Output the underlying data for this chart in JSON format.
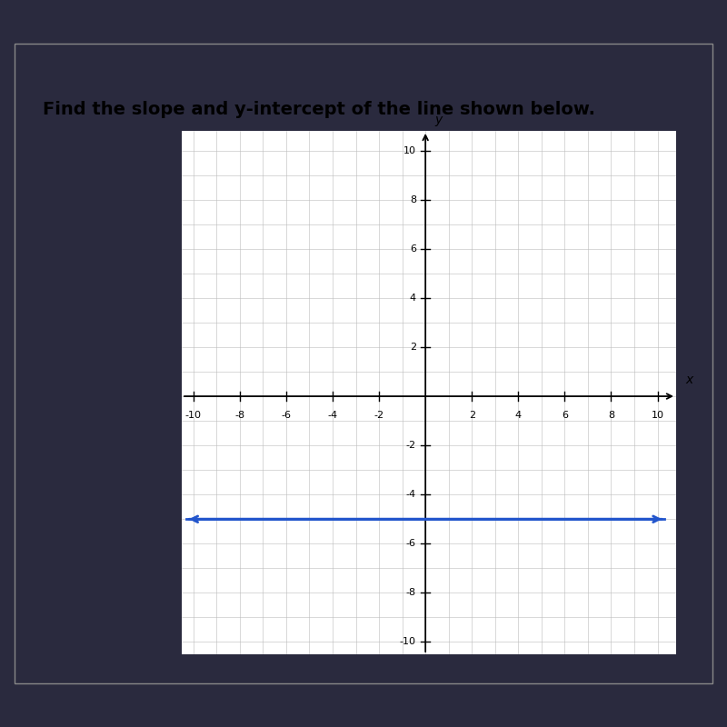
{
  "title": "Find the slope and y-intercept of the line shown below.",
  "title_fontsize": 14,
  "title_color": "#000000",
  "bg_outer_top": "#1a1a2e",
  "bg_card": "#e8e8e8",
  "bg_white": "#ffffff",
  "grid_color": "#bbbbbb",
  "axis_color": "#000000",
  "line_y": -5,
  "line_color": "#2255cc",
  "line_width": 2.0,
  "xlim": [
    -10.5,
    11
  ],
  "ylim": [
    -10.5,
    11
  ],
  "xticks": [
    -10,
    -8,
    -6,
    -4,
    -2,
    2,
    4,
    6,
    8,
    10
  ],
  "yticks": [
    -10,
    -8,
    -6,
    -4,
    -2,
    2,
    4,
    6,
    8,
    10
  ],
  "xlabel": "x",
  "ylabel": "y",
  "figsize": [
    8.0,
    8.0
  ],
  "dpi": 100
}
